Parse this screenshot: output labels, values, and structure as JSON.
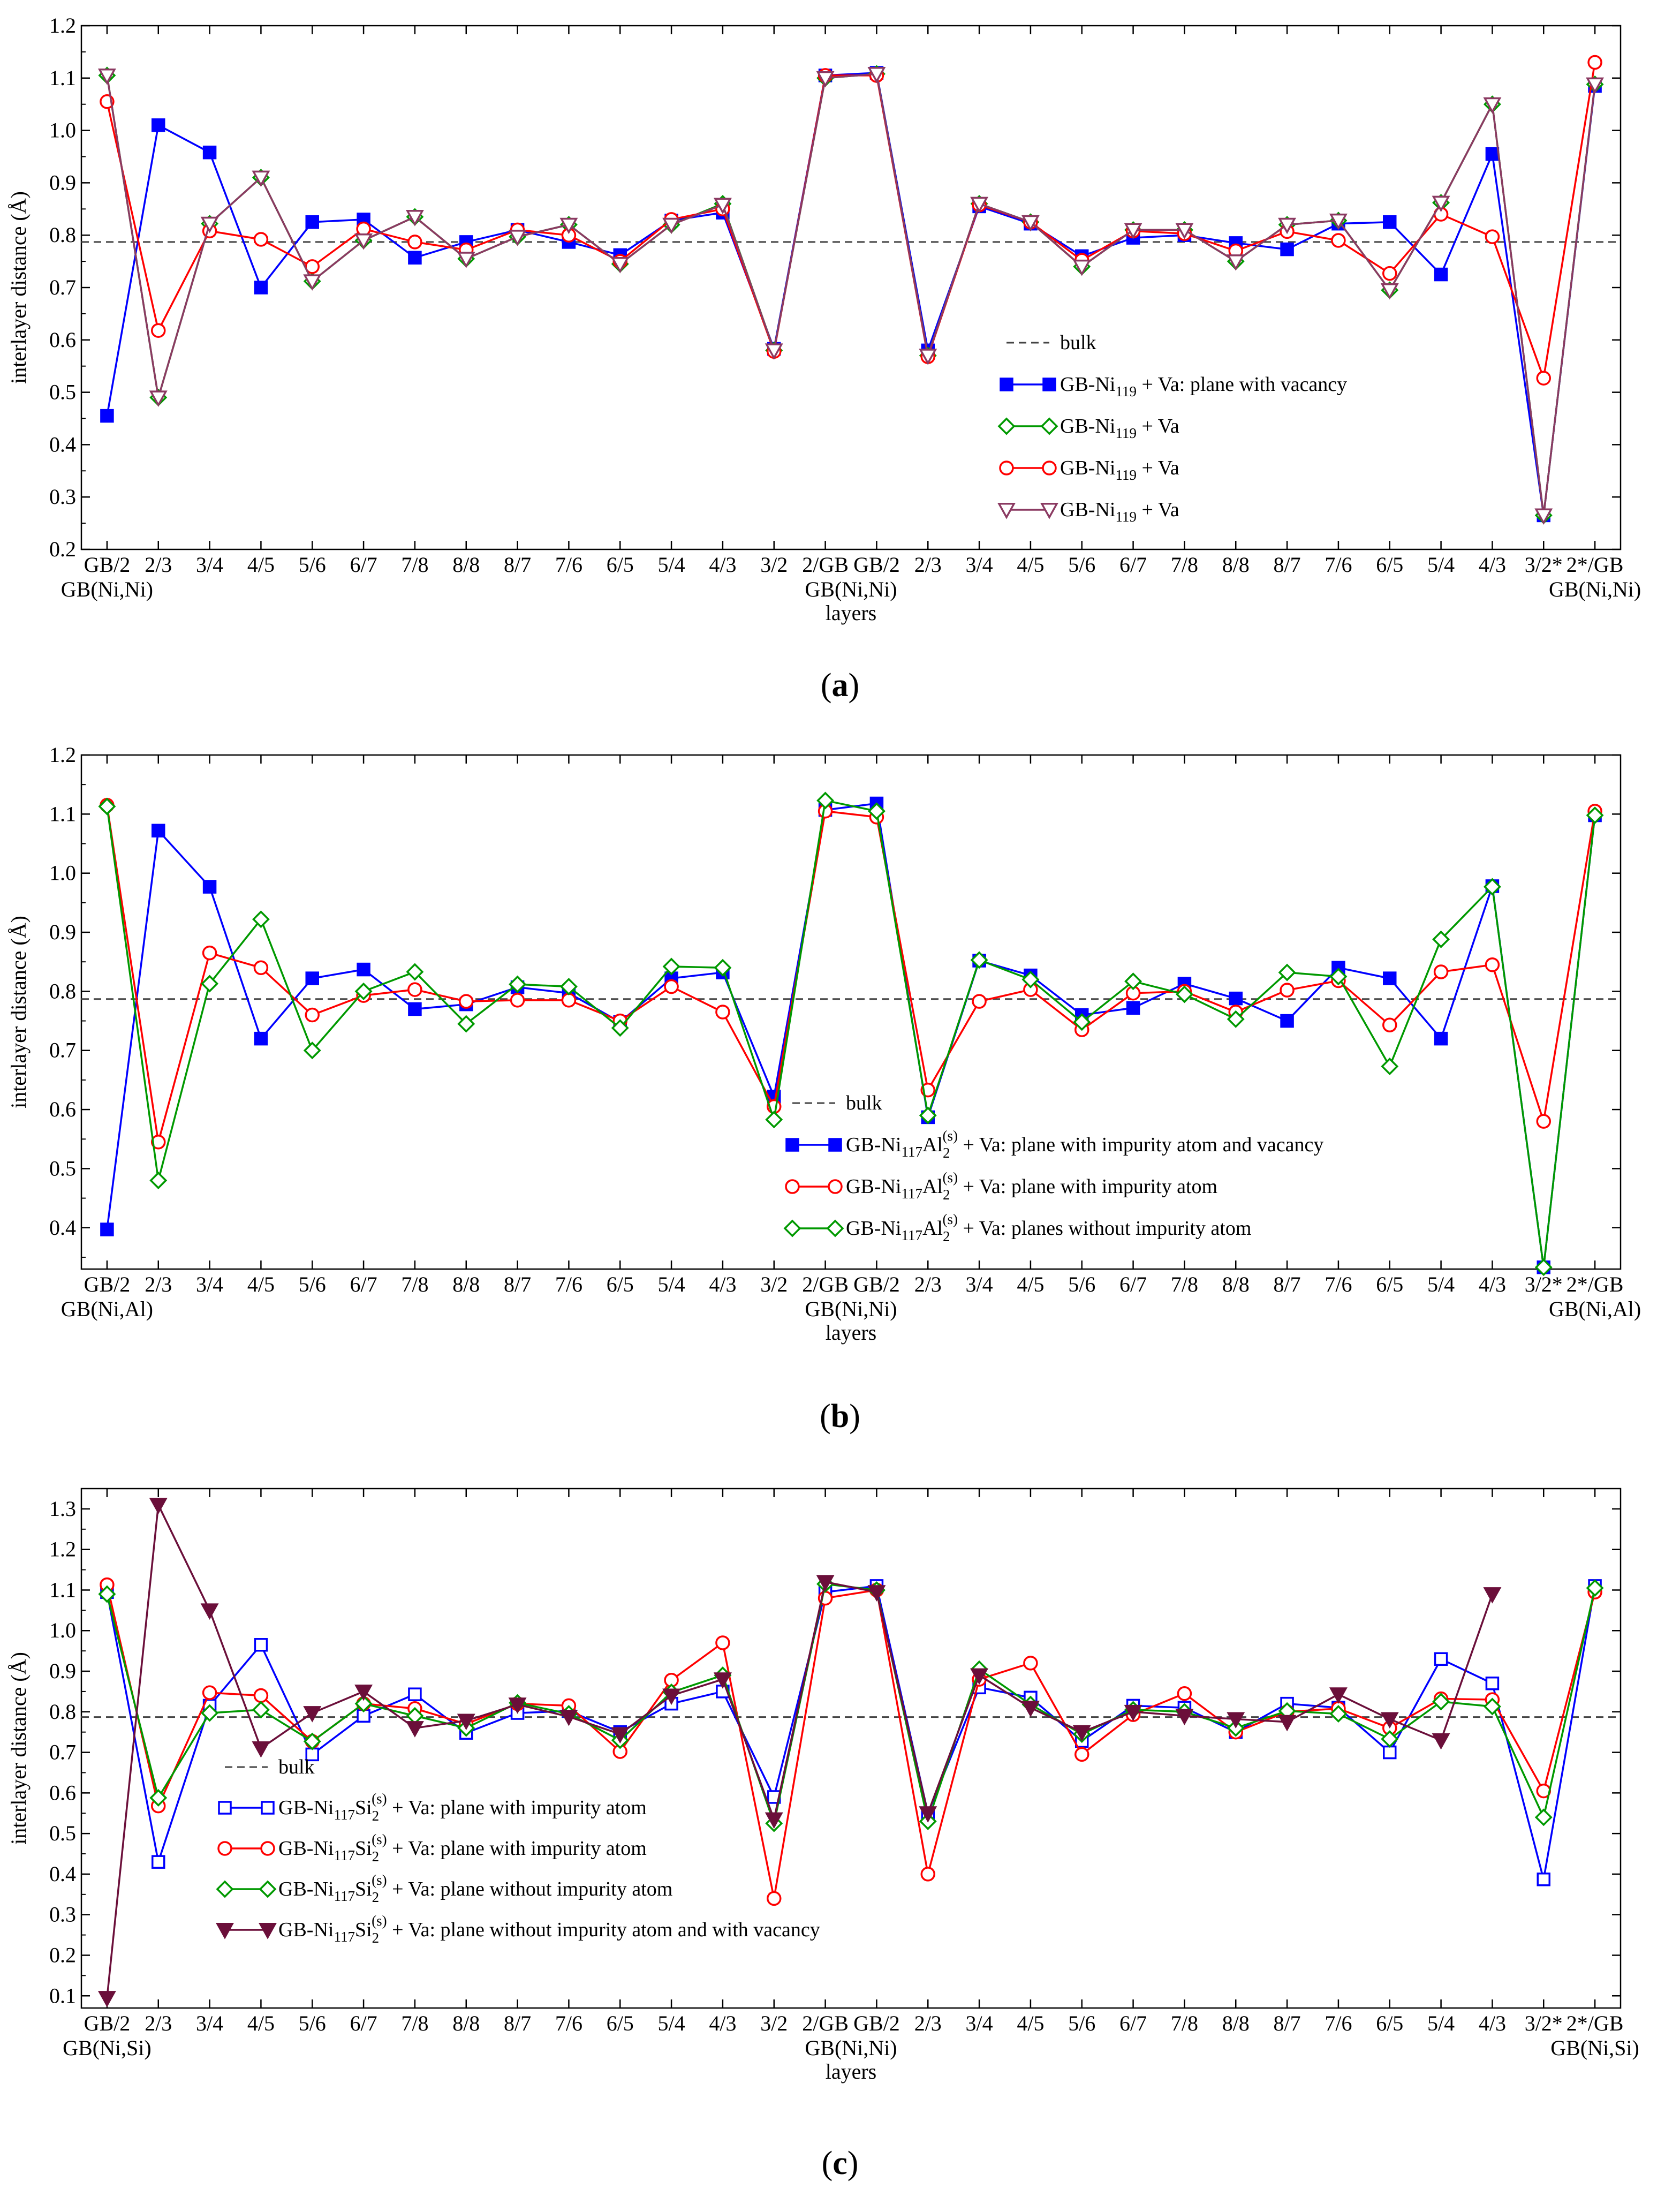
{
  "figure": {
    "panel_labels": [
      "a",
      "b",
      "c"
    ]
  },
  "chart_data": [
    {
      "type": "line",
      "panel": "a",
      "xlabel": "layers",
      "ylabel": "interlayer distance (Å)",
      "ylim": [
        0.2,
        1.2
      ],
      "yticks": [
        0.2,
        0.3,
        0.4,
        0.5,
        0.6,
        0.7,
        0.8,
        0.9,
        1.0,
        1.1,
        1.2
      ],
      "categories": [
        "GB/2",
        "2/3",
        "3/4",
        "4/5",
        "5/6",
        "6/7",
        "7/8",
        "8/8",
        "8/7",
        "7/6",
        "6/5",
        "5/4",
        "4/3",
        "3/2",
        "2/GB",
        "GB/2",
        "2/3",
        "3/4",
        "4/5",
        "5/6",
        "6/7",
        "7/8",
        "8/8",
        "8/7",
        "7/6",
        "6/5",
        "5/4",
        "4/3",
        "3/2*",
        "2*/GB"
      ],
      "gb_labels": [
        {
          "index": 0,
          "text": "GB(Ni,Ni)"
        },
        {
          "index": 14.5,
          "text": "GB(Ni,Ni)"
        },
        {
          "index": 29,
          "text": "GB(Ni,Ni)"
        }
      ],
      "bulk": 0.787,
      "legend": {
        "position": "center-right",
        "bulk_label": "bulk"
      },
      "series": [
        {
          "name": "GB-Ni119 + Va: plane with vacancy",
          "label_main": "GB-Ni",
          "label_sub": "119",
          "label_rest": " + Va: plane with vacancy",
          "color": "#0000ff",
          "marker": "square-filled",
          "values": [
            0.455,
            1.01,
            0.958,
            0.7,
            0.825,
            0.83,
            0.757,
            0.787,
            0.81,
            0.787,
            0.762,
            0.828,
            0.843,
            0.583,
            1.105,
            1.11,
            0.58,
            0.855,
            0.822,
            0.76,
            0.795,
            0.8,
            0.785,
            0.773,
            0.822,
            0.825,
            0.725,
            0.955,
            0.265,
            1.085
          ]
        },
        {
          "name": "GB-Ni119 + Va (green)",
          "label_main": "GB-Ni",
          "label_sub": "119",
          "label_rest": " + Va",
          "color": "#009900",
          "marker": "diamond-open",
          "values": [
            1.105,
            0.49,
            0.822,
            0.91,
            0.712,
            0.79,
            0.835,
            0.755,
            0.797,
            0.82,
            0.745,
            0.82,
            0.86,
            0.58,
            1.1,
            1.108,
            0.57,
            0.86,
            0.825,
            0.74,
            0.81,
            0.81,
            0.75,
            0.82,
            0.828,
            0.695,
            0.862,
            1.05,
            0.265,
            1.088
          ]
        },
        {
          "name": "GB-Ni119 + Va (red)",
          "label_main": "GB-Ni",
          "label_sub": "119",
          "label_rest": " + Va",
          "color": "#ff0000",
          "marker": "circle-open",
          "values": [
            1.055,
            0.618,
            0.808,
            0.792,
            0.74,
            0.812,
            0.787,
            0.772,
            0.81,
            0.8,
            0.75,
            0.83,
            0.85,
            0.578,
            1.105,
            1.105,
            0.568,
            0.858,
            0.825,
            0.752,
            0.808,
            0.803,
            0.77,
            0.807,
            0.79,
            0.727,
            0.84,
            0.797,
            0.527,
            1.13
          ]
        },
        {
          "name": "GB-Ni119 + Va (purple)",
          "label_main": "GB-Ni",
          "label_sub": "119",
          "label_rest": " + Va",
          "color": "#8b3a62",
          "marker": "triangle-down-open",
          "values": [
            1.105,
            0.49,
            0.822,
            0.91,
            0.712,
            0.79,
            0.835,
            0.755,
            0.797,
            0.82,
            0.745,
            0.82,
            0.858,
            0.58,
            1.1,
            1.108,
            0.57,
            0.86,
            0.825,
            0.74,
            0.81,
            0.81,
            0.75,
            0.82,
            0.828,
            0.695,
            0.862,
            1.05,
            0.265,
            1.088
          ]
        }
      ]
    },
    {
      "type": "line",
      "panel": "b",
      "xlabel": "layers",
      "ylabel": "interlayer distance (Å)",
      "ylim": [
        0.33,
        1.2
      ],
      "yticks": [
        0.4,
        0.5,
        0.6,
        0.7,
        0.8,
        0.9,
        1.0,
        1.1,
        1.2
      ],
      "categories": [
        "GB/2",
        "2/3",
        "3/4",
        "4/5",
        "5/6",
        "6/7",
        "7/8",
        "8/8",
        "8/7",
        "7/6",
        "6/5",
        "5/4",
        "4/3",
        "3/2",
        "2/GB",
        "GB/2",
        "2/3",
        "3/4",
        "4/5",
        "5/6",
        "6/7",
        "7/8",
        "8/8",
        "8/7",
        "7/6",
        "6/5",
        "5/4",
        "4/3",
        "3/2*",
        "2*/GB"
      ],
      "gb_labels": [
        {
          "index": 0,
          "text": "GB(Ni,Al)"
        },
        {
          "index": 14.5,
          "text": "GB(Ni,Ni)"
        },
        {
          "index": 29,
          "text": "GB(Ni,Al)"
        }
      ],
      "bulk": 0.787,
      "legend": {
        "position": "bottom-center",
        "bulk_label": "bulk"
      },
      "series": [
        {
          "name": "GB-Ni117Al2(s) + Va: plane with impurity atom and vacancy",
          "label_main": "GB-Ni",
          "label_sub": "117",
          "label_el": "Al",
          "label_el_sub": "2",
          "label_el_sup": "(s)",
          "label_rest": " + Va: plane with impurity atom and vacancy",
          "color": "#0000ff",
          "marker": "square-filled",
          "values": [
            0.397,
            1.072,
            0.977,
            0.72,
            0.822,
            0.837,
            0.77,
            0.778,
            0.807,
            0.797,
            0.748,
            0.822,
            0.832,
            0.622,
            1.107,
            1.118,
            0.587,
            0.852,
            0.827,
            0.76,
            0.772,
            0.813,
            0.788,
            0.75,
            0.84,
            0.822,
            0.72,
            0.978,
            0.333,
            1.098
          ]
        },
        {
          "name": "GB-Ni117Al2(s) + Va: plane with impurity atom",
          "label_main": "GB-Ni",
          "label_sub": "117",
          "label_el": "Al",
          "label_el_sub": "2",
          "label_el_sup": "(s)",
          "label_rest": " + Va: plane with impurity atom",
          "color": "#ff0000",
          "marker": "circle-open",
          "values": [
            1.115,
            0.545,
            0.865,
            0.84,
            0.76,
            0.793,
            0.803,
            0.783,
            0.785,
            0.785,
            0.75,
            0.808,
            0.765,
            0.605,
            1.105,
            1.095,
            0.633,
            0.783,
            0.803,
            0.735,
            0.797,
            0.8,
            0.765,
            0.802,
            0.818,
            0.743,
            0.833,
            0.845,
            0.58,
            1.105
          ]
        },
        {
          "name": "GB-Ni117Al2(s) + Va: planes without impurity atom",
          "label_main": "GB-Ni",
          "label_sub": "117",
          "label_el": "Al",
          "label_el_sub": "2",
          "label_el_sup": "(s)",
          "label_rest": " + Va: planes without impurity atom",
          "color": "#009900",
          "marker": "diamond-open",
          "values": [
            1.113,
            0.48,
            0.813,
            0.922,
            0.7,
            0.8,
            0.833,
            0.745,
            0.812,
            0.808,
            0.738,
            0.842,
            0.84,
            0.583,
            1.123,
            1.105,
            0.59,
            0.853,
            0.82,
            0.748,
            0.817,
            0.795,
            0.753,
            0.832,
            0.825,
            0.673,
            0.888,
            0.977,
            0.333,
            1.098
          ]
        }
      ]
    },
    {
      "type": "line",
      "panel": "c",
      "xlabel": "layers",
      "ylabel": "interlayer distance (Å)",
      "ylim": [
        0.07,
        1.35
      ],
      "yticks": [
        0.1,
        0.2,
        0.3,
        0.4,
        0.5,
        0.6,
        0.7,
        0.8,
        0.9,
        1.0,
        1.1,
        1.2,
        1.3
      ],
      "categories": [
        "GB/2",
        "2/3",
        "3/4",
        "4/5",
        "5/6",
        "6/7",
        "7/8",
        "8/8",
        "8/7",
        "7/6",
        "6/5",
        "5/4",
        "4/3",
        "3/2",
        "2/GB",
        "GB/2",
        "2/3",
        "3/4",
        "4/5",
        "5/6",
        "6/7",
        "7/8",
        "8/8",
        "8/7",
        "7/6",
        "6/5",
        "5/4",
        "4/3",
        "3/2*",
        "2*/GB"
      ],
      "gb_labels": [
        {
          "index": 0,
          "text": "GB(Ni,Si)"
        },
        {
          "index": 14.5,
          "text": "GB(Ni,Ni)"
        },
        {
          "index": 29,
          "text": "GB(Ni,Si)"
        }
      ],
      "bulk": 0.787,
      "legend": {
        "position": "bottom-left",
        "bulk_label": "bulk"
      },
      "series": [
        {
          "name": "GB-Ni117Si2(s) + Va: plane with impurity atom (blue)",
          "label_main": "GB-Ni",
          "label_sub": "117",
          "label_el": "Si",
          "label_el_sub": "2",
          "label_el_sup": "(s)",
          "label_rest": " + Va: plane with impurity atom",
          "color": "#0000ff",
          "marker": "square-open",
          "values": [
            1.095,
            0.43,
            0.815,
            0.965,
            0.695,
            0.79,
            0.843,
            0.748,
            0.797,
            0.802,
            0.75,
            0.82,
            0.85,
            0.59,
            1.095,
            1.11,
            0.55,
            0.86,
            0.835,
            0.728,
            0.815,
            0.81,
            0.75,
            0.82,
            0.81,
            0.7,
            0.93,
            0.87,
            0.387,
            1.11
          ]
        },
        {
          "name": "GB-Ni117Si2(s) + Va: plane with impurity atom (red)",
          "label_main": "GB-Ni",
          "label_sub": "117",
          "label_el": "Si",
          "label_el_sub": "2",
          "label_el_sup": "(s)",
          "label_rest": " + Va: plane with impurity atom",
          "color": "#ff0000",
          "marker": "circle-open",
          "values": [
            1.113,
            0.568,
            0.847,
            0.84,
            0.727,
            0.82,
            0.808,
            0.77,
            0.82,
            0.815,
            0.702,
            0.878,
            0.97,
            0.34,
            1.08,
            1.1,
            0.4,
            0.88,
            0.92,
            0.695,
            0.793,
            0.845,
            0.75,
            0.8,
            0.808,
            0.76,
            0.832,
            0.83,
            0.605,
            1.095
          ]
        },
        {
          "name": "GB-Ni117Si2(s) + Va: plane without impurity atom",
          "label_main": "GB-Ni",
          "label_sub": "117",
          "label_el": "Si",
          "label_el_sub": "2",
          "label_el_sup": "(s)",
          "label_rest": " + Va: plane without impurity atom",
          "color": "#009900",
          "marker": "diamond-open",
          "values": [
            1.09,
            0.588,
            0.797,
            0.805,
            0.727,
            0.82,
            0.79,
            0.76,
            0.822,
            0.795,
            0.73,
            0.848,
            0.89,
            0.525,
            1.115,
            1.1,
            0.53,
            0.905,
            0.818,
            0.745,
            0.805,
            0.8,
            0.76,
            0.802,
            0.795,
            0.733,
            0.825,
            0.813,
            0.54,
            1.105
          ]
        },
        {
          "name": "GB-Ni117Si2(s) + Va: plane without impurity atom and with vacancy",
          "label_main": "GB-Ni",
          "label_sub": "117",
          "label_el": "Si",
          "label_el_sub": "2",
          "label_el_sup": "(s)",
          "label_rest": " + Va: plane without impurity atom and with vacancy",
          "color": "#6b0f3a",
          "marker": "triangle-down-filled",
          "values": [
            0.095,
            1.31,
            1.05,
            0.71,
            0.797,
            0.85,
            0.76,
            0.778,
            0.818,
            0.788,
            0.745,
            0.84,
            0.88,
            0.535,
            1.12,
            1.095,
            0.55,
            0.89,
            0.81,
            0.75,
            0.8,
            0.79,
            0.782,
            0.775,
            0.843,
            0.782,
            0.73,
            1.09,
            null,
            null
          ]
        }
      ]
    }
  ]
}
